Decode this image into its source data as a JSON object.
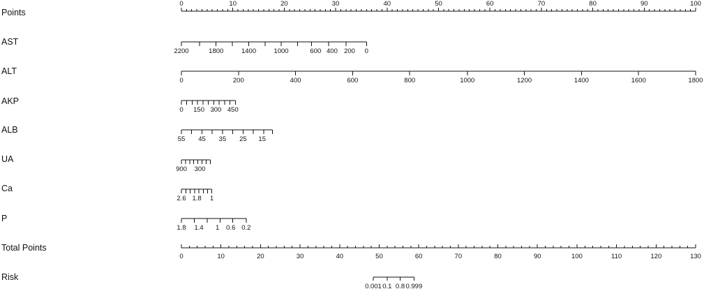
{
  "chart_data": {
    "type": "nomogram",
    "title": "",
    "rows": [
      {
        "name": "Points",
        "labels_above": true,
        "major": [
          0,
          10,
          20,
          30,
          40,
          50,
          60,
          70,
          80,
          90,
          100
        ],
        "labels": [
          0,
          10,
          20,
          30,
          40,
          50,
          60,
          70,
          80,
          90,
          100
        ],
        "minor": [
          1,
          2,
          3,
          4,
          5,
          6,
          7,
          8,
          9,
          11,
          12,
          13,
          14,
          15,
          16,
          17,
          18,
          19,
          21,
          22,
          23,
          24,
          25,
          26,
          27,
          28,
          29,
          31,
          32,
          33,
          34,
          35,
          36,
          37,
          38,
          39,
          41,
          42,
          43,
          44,
          45,
          46,
          47,
          48,
          49,
          51,
          52,
          53,
          54,
          55,
          56,
          57,
          58,
          59,
          61,
          62,
          63,
          64,
          65,
          66,
          67,
          68,
          69,
          71,
          72,
          73,
          74,
          75,
          76,
          77,
          78,
          79,
          81,
          82,
          83,
          84,
          85,
          86,
          87,
          88,
          89,
          91,
          92,
          93,
          94,
          95,
          96,
          97,
          98,
          99
        ]
      },
      {
        "name": "AST",
        "ticks_points": [
          0,
          3.5,
          6.75,
          9.9,
          13.1,
          16.3,
          19.4,
          22.6,
          25.3,
          28.6,
          32,
          36
        ],
        "labels": [
          {
            "text": "2200",
            "points": 0
          },
          {
            "text": "1800",
            "points": 6.75
          },
          {
            "text": "1400",
            "points": 13.1
          },
          {
            "text": "1000",
            "points": 19.4
          },
          {
            "text": "600",
            "points": 26.1
          },
          {
            "text": "400",
            "points": 29.3
          },
          {
            "text": "200",
            "points": 32.7
          },
          {
            "text": "0",
            "points": 36
          }
        ]
      },
      {
        "name": "ALT",
        "ticks_points": [
          0,
          11.1,
          22.2,
          33.3,
          44.4,
          55.6,
          66.7,
          77.8,
          88.9,
          100
        ],
        "labels": [
          {
            "text": "0",
            "points": 0
          },
          {
            "text": "200",
            "points": 11.1
          },
          {
            "text": "400",
            "points": 22.2
          },
          {
            "text": "600",
            "points": 33.3
          },
          {
            "text": "800",
            "points": 44.4
          },
          {
            "text": "1000",
            "points": 55.6
          },
          {
            "text": "1200",
            "points": 66.7
          },
          {
            "text": "1400",
            "points": 77.8
          },
          {
            "text": "1600",
            "points": 88.9
          },
          {
            "text": "1800",
            "points": 100
          }
        ]
      },
      {
        "name": "AKP",
        "ticks_points": [
          0,
          1.05,
          2.1,
          3.15,
          4.2,
          5.25,
          6.3,
          7.35,
          8.4,
          9.45,
          10.5
        ],
        "labels": [
          {
            "text": "0",
            "points": 0
          },
          {
            "text": "150",
            "points": 3.4
          },
          {
            "text": "300",
            "points": 6.7
          },
          {
            "text": "450",
            "points": 10.0
          }
        ]
      },
      {
        "name": "ALB",
        "ticks_points": [
          0,
          2,
          4,
          6,
          8,
          10,
          12,
          14,
          16,
          17.7
        ],
        "labels": [
          {
            "text": "55",
            "points": 0
          },
          {
            "text": "45",
            "points": 4.0
          },
          {
            "text": "35",
            "points": 8.0
          },
          {
            "text": "25",
            "points": 12.0
          },
          {
            "text": "15",
            "points": 15.7
          }
        ]
      },
      {
        "name": "UA",
        "ticks_points": [
          0,
          0.8,
          1.6,
          2.4,
          3.2,
          4.0,
          4.8,
          5.6
        ],
        "labels": [
          {
            "text": "900",
            "points": 0
          },
          {
            "text": "300",
            "points": 3.6
          }
        ]
      },
      {
        "name": "Ca",
        "ticks_points": [
          0,
          0.85,
          1.7,
          2.55,
          3.4,
          4.25,
          5.1,
          5.9
        ],
        "labels": [
          {
            "text": "2.6",
            "points": 0
          },
          {
            "text": "1.8",
            "points": 3.0
          },
          {
            "text": "1",
            "points": 5.9
          }
        ]
      },
      {
        "name": "P",
        "ticks_points": [
          0,
          2.5,
          5.0,
          7.5,
          10.0,
          12.6
        ],
        "labels": [
          {
            "text": "1.8",
            "points": 0
          },
          {
            "text": "1.4",
            "points": 3.4
          },
          {
            "text": "1",
            "points": 7.0
          },
          {
            "text": "0.6",
            "points": 9.6
          },
          {
            "text": "0.2",
            "points": 12.6
          }
        ]
      },
      {
        "name": "Total Points",
        "scale": "total",
        "range": [
          0,
          130
        ],
        "major_step": 10,
        "minor_step": 2,
        "labels": [
          0,
          10,
          20,
          30,
          40,
          50,
          60,
          70,
          80,
          90,
          100,
          110,
          120,
          130
        ]
      },
      {
        "name": "Risk",
        "scale": "total",
        "ticks_total": [
          48.5,
          52,
          55.3,
          58.8
        ],
        "labels": [
          {
            "text": "0.001",
            "total": 48.5
          },
          {
            "text": "0.1",
            "total": 52
          },
          {
            "text": "0.8",
            "total": 55.3
          },
          {
            "text": "0.999",
            "total": 58.8
          }
        ]
      }
    ],
    "points_range": [
      0,
      100
    ],
    "total_points_range": [
      0,
      130
    ],
    "grid": false,
    "legend": "none"
  }
}
